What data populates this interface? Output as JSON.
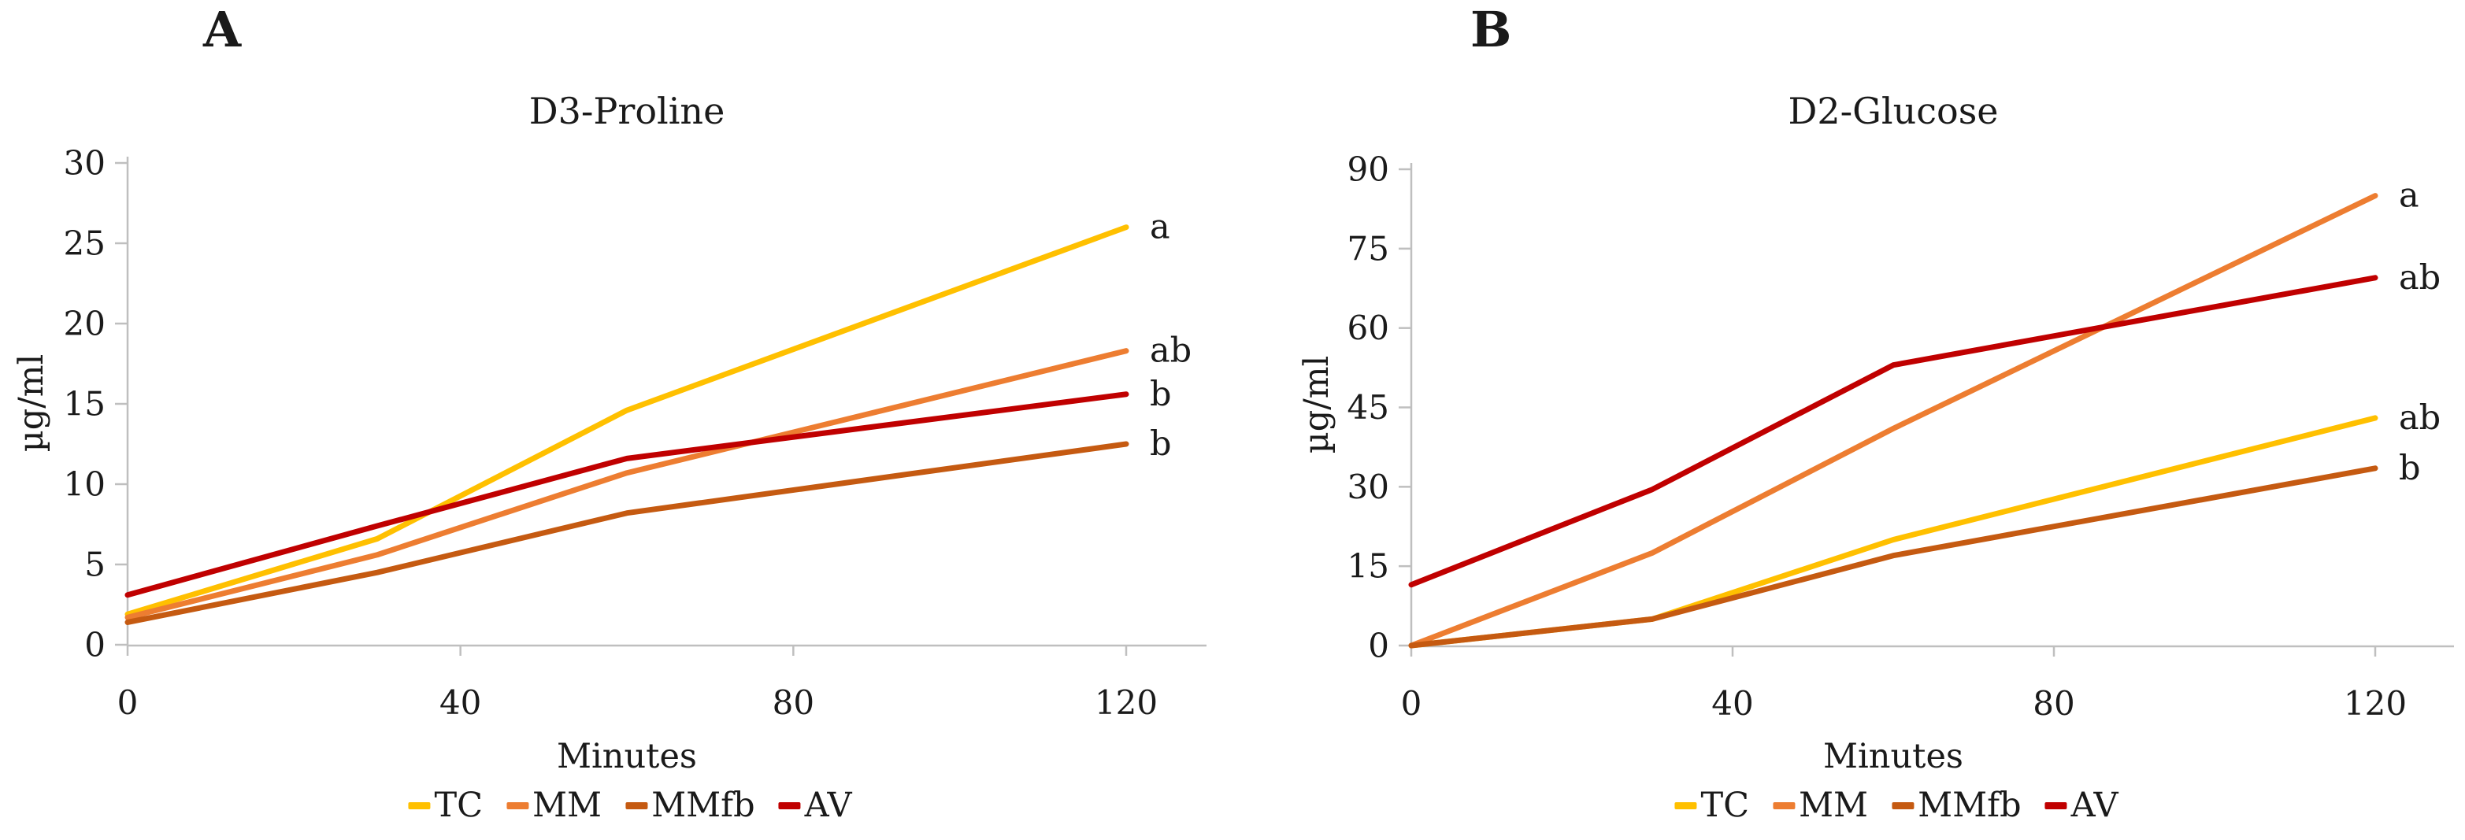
{
  "figure_type": "two-panel line figure",
  "colors": {
    "tc": "#FFC000",
    "mm": "#ED7D31",
    "mmfb": "#C55A11",
    "av": "#C00000",
    "axis": "#BFBFBF",
    "text": "#1a1a1a"
  },
  "chart_data": [
    {
      "type": "line",
      "panel_label": "A",
      "title": "D3-Proline",
      "xlabel": "Minutes",
      "ylabel": "µg/ml",
      "x": [
        0,
        30,
        60,
        120
      ],
      "x_ticks": [
        0,
        40,
        80,
        120
      ],
      "y_ticks": [
        0,
        5,
        10,
        15,
        20,
        25,
        30
      ],
      "xlim": [
        0,
        120
      ],
      "ylim": [
        0,
        30
      ],
      "grid": false,
      "legend_position": "bottom",
      "series": [
        {
          "name": "TC",
          "color": "#FFC000",
          "values": [
            1.9,
            6.6,
            14.6,
            26.0
          ],
          "sig_label": "a"
        },
        {
          "name": "MM",
          "color": "#ED7D31",
          "values": [
            1.7,
            5.6,
            10.7,
            18.3
          ],
          "sig_label": "ab"
        },
        {
          "name": "MMfb",
          "color": "#C55A11",
          "values": [
            1.4,
            4.5,
            8.2,
            12.5
          ],
          "sig_label": "b"
        },
        {
          "name": "AV",
          "color": "#C00000",
          "values": [
            3.1,
            7.4,
            11.6,
            15.6
          ],
          "sig_label": "b"
        }
      ]
    },
    {
      "type": "line",
      "panel_label": "B",
      "title": "D2-Glucose",
      "xlabel": "Minutes",
      "ylabel": "µg/ml",
      "x": [
        0,
        30,
        60,
        120
      ],
      "x_ticks": [
        0,
        40,
        80,
        120
      ],
      "y_ticks": [
        0,
        15,
        30,
        45,
        60,
        75,
        90
      ],
      "xlim": [
        0,
        120
      ],
      "ylim": [
        0,
        90
      ],
      "grid": false,
      "legend_position": "bottom",
      "series": [
        {
          "name": "TC",
          "color": "#FFC000",
          "values": [
            0,
            5,
            20,
            43
          ],
          "sig_label": "ab"
        },
        {
          "name": "MM",
          "color": "#ED7D31",
          "values": [
            0,
            17.5,
            41,
            85
          ],
          "sig_label": "a"
        },
        {
          "name": "MMfb",
          "color": "#C55A11",
          "values": [
            0,
            5,
            17,
            33.5
          ],
          "sig_label": "b"
        },
        {
          "name": "AV",
          "color": "#C00000",
          "values": [
            11.5,
            29.5,
            53,
            69.5
          ],
          "sig_label": "ab"
        }
      ]
    }
  ]
}
